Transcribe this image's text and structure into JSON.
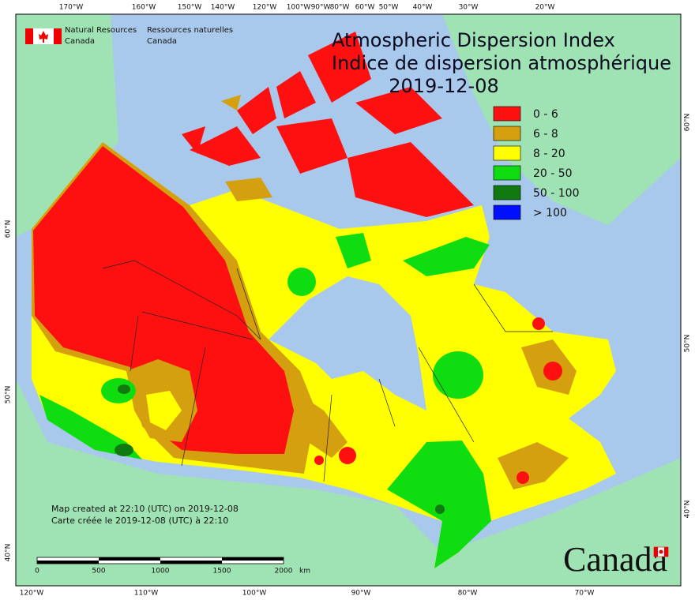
{
  "header": {
    "logo": {
      "en": [
        "Natural Resources",
        "Canada"
      ],
      "fr": [
        "Ressources naturelles",
        "Canada"
      ]
    },
    "title": [
      "Atmospheric Dispersion Index",
      "Indice de dispersion atmosphérique"
    ],
    "date": "2019-12-08"
  },
  "legend": [
    {
      "label": "0 - 6",
      "color": "#ff1010"
    },
    {
      "label": "6 - 8",
      "color": "#d4a010"
    },
    {
      "label": "8 - 20",
      "color": "#ffff00"
    },
    {
      "label": "20 - 50",
      "color": "#10dd10"
    },
    {
      "label": "50 - 100",
      "color": "#107a10"
    },
    {
      "label": "> 100",
      "color": "#0010ff"
    }
  ],
  "graticule": {
    "top": [
      "170°W",
      "160°W",
      "150°W",
      "140°W",
      "120°W",
      "100°W",
      "90°W",
      "80°W",
      "60°W",
      "50°W",
      "40°W",
      "30°W",
      "20°W"
    ],
    "bottom": [
      "120°W",
      "110°W",
      "100°W",
      "90°W",
      "80°W",
      "70°W"
    ],
    "left": [
      "60°N",
      "50°N",
      "40°N"
    ],
    "right": [
      "60°N",
      "50°N",
      "40°N"
    ]
  },
  "credits": [
    "Map created at 22:10 (UTC) on 2019-12-08",
    "Carte créée le 2019-12-08 (UTC) à 22:10"
  ],
  "scale_bar": {
    "labels": [
      "0",
      "500",
      "1000",
      "1500",
      "2000"
    ],
    "unit": "km"
  },
  "wordmark": "Canada"
}
